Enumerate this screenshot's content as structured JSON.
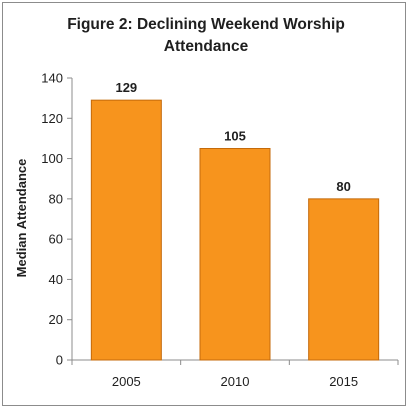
{
  "chart_data": {
    "type": "bar",
    "title_lines": [
      "Figure 2: Declining Weekend Worship",
      "Attendance"
    ],
    "xlabel": "",
    "ylabel": "Median Attendance",
    "categories": [
      "2005",
      "2010",
      "2015"
    ],
    "values": [
      129,
      105,
      80
    ],
    "data_labels": [
      "129",
      "105",
      "80"
    ],
    "ylim": [
      0,
      140
    ],
    "yticks": [
      "0",
      "20",
      "40",
      "60",
      "80",
      "100",
      "120",
      "140"
    ],
    "grid": false,
    "legend": "none",
    "bar_color": "#f7941d",
    "bar_edge_color": "#c46a0a"
  }
}
